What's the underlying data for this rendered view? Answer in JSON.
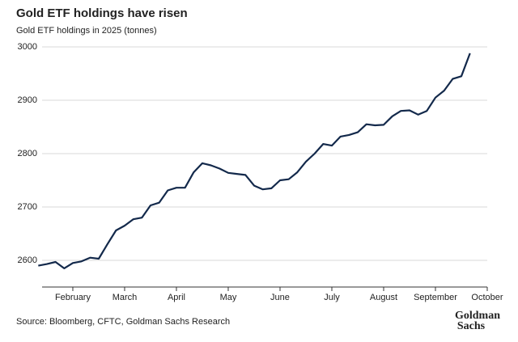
{
  "chart_data": {
    "type": "line",
    "title": "Gold ETF holdings have risen",
    "subtitle": "Gold ETF holdings in 2025 (tonnes)",
    "source": "Source: Bloomberg, CFTC, Goldman Sachs Research",
    "logo": [
      "Goldman",
      "Sachs"
    ],
    "categories": [
      null,
      null,
      null,
      null,
      "February",
      null,
      null,
      null,
      null,
      null,
      "March",
      null,
      null,
      null,
      null,
      null,
      "April",
      null,
      null,
      null,
      null,
      null,
      "May",
      null,
      null,
      null,
      null,
      null,
      "June",
      null,
      null,
      null,
      null,
      null,
      "July",
      null,
      null,
      null,
      null,
      null,
      "August",
      null,
      null,
      null,
      null,
      null,
      "September",
      null,
      null,
      null,
      null,
      null,
      "October"
    ],
    "series": [
      {
        "name": "Gold ETF holdings",
        "color": "#13294b",
        "values": [
          2590,
          2593,
          2597,
          2585,
          2595,
          2598,
          2605,
          2603,
          2630,
          2656,
          2665,
          2677,
          2680,
          2703,
          2708,
          2731,
          2736,
          2736,
          2765,
          2782,
          2778,
          2772,
          2764,
          2762,
          2760,
          2740,
          2733,
          2735,
          2750,
          2752,
          2765,
          2785,
          2800,
          2818,
          2815,
          2832,
          2835,
          2840,
          2855,
          2853,
          2854,
          2870,
          2880,
          2881,
          2873,
          2880,
          2905,
          2918,
          2940,
          2945,
          2988,
          null,
          null
        ]
      }
    ],
    "ylim": [
      2550,
      3000
    ],
    "yticks": [
      2600,
      2700,
      2800,
      2900,
      3000
    ],
    "grid": true
  }
}
